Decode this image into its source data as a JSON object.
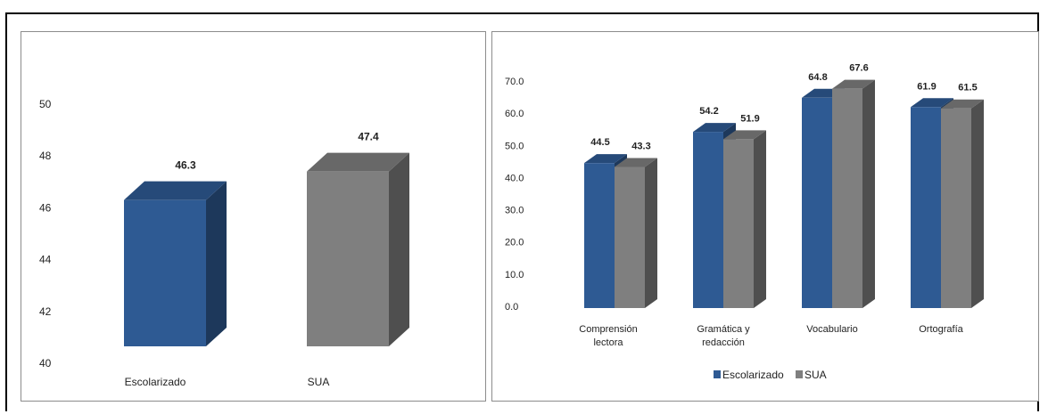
{
  "chart_data": [
    {
      "type": "bar",
      "categories": [
        "Escolarizado",
        "SUA"
      ],
      "values": [
        46.3,
        47.4
      ],
      "data_labels": [
        "46.3",
        "47.4"
      ],
      "colors": [
        "#2e5a93",
        "#7f7f7f"
      ],
      "ylim": [
        40,
        50
      ],
      "yticks": [
        "40",
        "42",
        "44",
        "46",
        "48",
        "50"
      ],
      "three_d": true,
      "grid": false,
      "legend": "none"
    },
    {
      "type": "bar",
      "categories": [
        [
          "Comprensión",
          "lectora"
        ],
        [
          "Gramática y",
          "redacción"
        ],
        [
          "Vocabulario"
        ],
        [
          "Ortografía"
        ]
      ],
      "series": [
        {
          "name": "Escolarizado",
          "values": [
            44.5,
            54.2,
            64.8,
            61.9
          ],
          "labels": [
            "44.5",
            "54.2",
            "64.8",
            "61.9"
          ],
          "color": "#2e5a93"
        },
        {
          "name": "SUA",
          "values": [
            43.3,
            51.9,
            67.6,
            61.5
          ],
          "labels": [
            "43.3",
            "51.9",
            "67.6",
            "61.5"
          ],
          "color": "#7f7f7f"
        }
      ],
      "ylim": [
        0,
        70
      ],
      "yticks": [
        "0.0",
        "10.0",
        "20.0",
        "30.0",
        "40.0",
        "50.0",
        "60.0",
        "70.0"
      ],
      "three_d": true,
      "grid": false,
      "legend": "bottom"
    }
  ]
}
